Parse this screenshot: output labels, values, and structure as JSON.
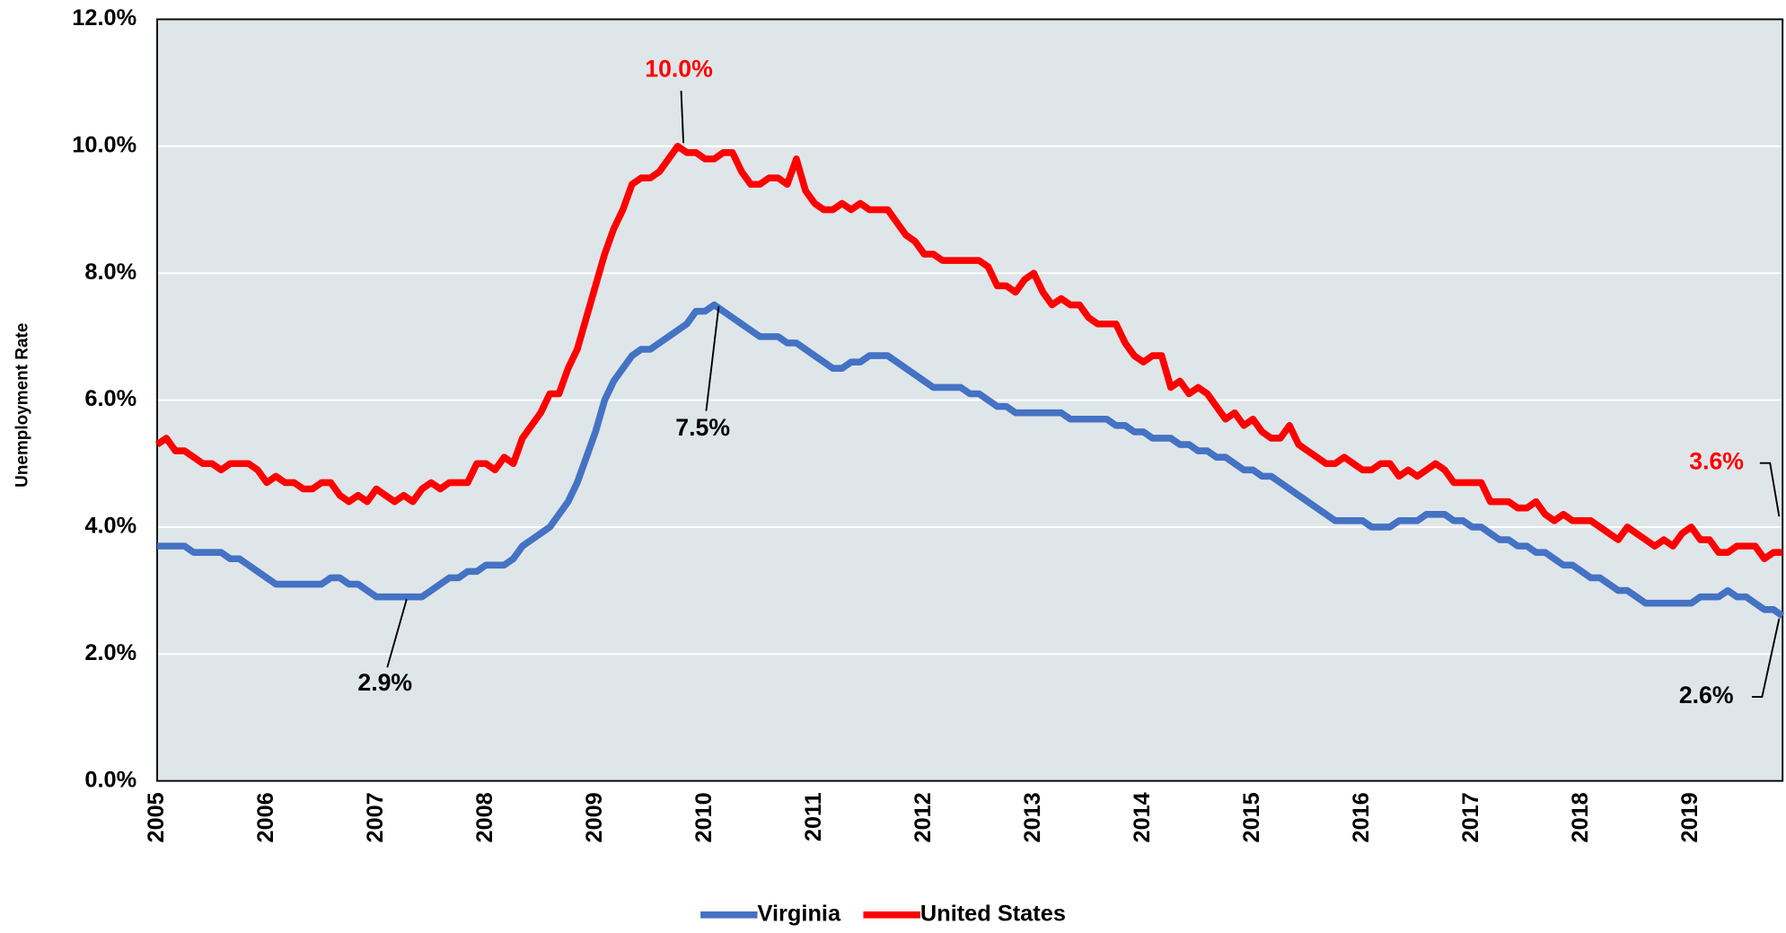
{
  "chart_data": {
    "type": "line",
    "y_label": "Unemployment Rate",
    "categories": [
      "2005",
      null,
      null,
      null,
      null,
      null,
      null,
      null,
      null,
      null,
      null,
      null,
      "2006",
      null,
      null,
      null,
      null,
      null,
      null,
      null,
      null,
      null,
      null,
      null,
      "2007",
      null,
      null,
      null,
      null,
      null,
      null,
      null,
      null,
      null,
      null,
      null,
      "2008",
      null,
      null,
      null,
      null,
      null,
      null,
      null,
      null,
      null,
      null,
      null,
      "2009",
      null,
      null,
      null,
      null,
      null,
      null,
      null,
      null,
      null,
      null,
      null,
      "2010",
      null,
      null,
      null,
      null,
      null,
      null,
      null,
      null,
      null,
      null,
      null,
      "2011",
      null,
      null,
      null,
      null,
      null,
      null,
      null,
      null,
      null,
      null,
      null,
      "2012",
      null,
      null,
      null,
      null,
      null,
      null,
      null,
      null,
      null,
      null,
      null,
      "2013",
      null,
      null,
      null,
      null,
      null,
      null,
      null,
      null,
      null,
      null,
      null,
      "2014",
      null,
      null,
      null,
      null,
      null,
      null,
      null,
      null,
      null,
      null,
      null,
      "2015",
      null,
      null,
      null,
      null,
      null,
      null,
      null,
      null,
      null,
      null,
      null,
      "2016",
      null,
      null,
      null,
      null,
      null,
      null,
      null,
      null,
      null,
      null,
      null,
      "2017",
      null,
      null,
      null,
      null,
      null,
      null,
      null,
      null,
      null,
      null,
      null,
      "2018",
      null,
      null,
      null,
      null,
      null,
      null,
      null,
      null,
      null,
      null,
      null,
      "2019",
      null,
      null,
      null,
      null,
      null,
      null,
      null,
      null,
      null,
      null
    ],
    "series": [
      {
        "name": "Virginia",
        "color": "#4472c4",
        "values": [
          3.7,
          3.7,
          3.7,
          3.7,
          3.6,
          3.6,
          3.6,
          3.6,
          3.5,
          3.5,
          3.4,
          3.3,
          3.2,
          3.1,
          3.1,
          3.1,
          3.1,
          3.1,
          3.1,
          3.2,
          3.2,
          3.1,
          3.1,
          3.0,
          2.9,
          2.9,
          2.9,
          2.9,
          2.9,
          2.9,
          3.0,
          3.1,
          3.2,
          3.2,
          3.3,
          3.3,
          3.4,
          3.4,
          3.4,
          3.5,
          3.7,
          3.8,
          3.9,
          4.0,
          4.2,
          4.4,
          4.7,
          5.1,
          5.5,
          6.0,
          6.3,
          6.5,
          6.7,
          6.8,
          6.8,
          6.9,
          7.0,
          7.1,
          7.2,
          7.4,
          7.4,
          7.5,
          7.4,
          7.3,
          7.2,
          7.1,
          7.0,
          7.0,
          7.0,
          6.9,
          6.9,
          6.8,
          6.7,
          6.6,
          6.5,
          6.5,
          6.6,
          6.6,
          6.7,
          6.7,
          6.7,
          6.6,
          6.5,
          6.4,
          6.3,
          6.2,
          6.2,
          6.2,
          6.2,
          6.1,
          6.1,
          6.0,
          5.9,
          5.9,
          5.8,
          5.8,
          5.8,
          5.8,
          5.8,
          5.8,
          5.7,
          5.7,
          5.7,
          5.7,
          5.7,
          5.6,
          5.6,
          5.5,
          5.5,
          5.4,
          5.4,
          5.4,
          5.3,
          5.3,
          5.2,
          5.2,
          5.1,
          5.1,
          5.0,
          4.9,
          4.9,
          4.8,
          4.8,
          4.7,
          4.6,
          4.5,
          4.4,
          4.3,
          4.2,
          4.1,
          4.1,
          4.1,
          4.1,
          4.0,
          4.0,
          4.0,
          4.1,
          4.1,
          4.1,
          4.2,
          4.2,
          4.2,
          4.1,
          4.1,
          4.0,
          4.0,
          3.9,
          3.8,
          3.8,
          3.7,
          3.7,
          3.6,
          3.6,
          3.5,
          3.4,
          3.4,
          3.3,
          3.2,
          3.2,
          3.1,
          3.0,
          3.0,
          2.9,
          2.8,
          2.8,
          2.8,
          2.8,
          2.8,
          2.8,
          2.9,
          2.9,
          2.9,
          3.0,
          2.9,
          2.9,
          2.8,
          2.7,
          2.7,
          2.6
        ]
      },
      {
        "name": "United States",
        "color": "#ff0000",
        "values": [
          5.3,
          5.4,
          5.2,
          5.2,
          5.1,
          5.0,
          5.0,
          4.9,
          5.0,
          5.0,
          5.0,
          4.9,
          4.7,
          4.8,
          4.7,
          4.7,
          4.6,
          4.6,
          4.7,
          4.7,
          4.5,
          4.4,
          4.5,
          4.4,
          4.6,
          4.5,
          4.4,
          4.5,
          4.4,
          4.6,
          4.7,
          4.6,
          4.7,
          4.7,
          4.7,
          5.0,
          5.0,
          4.9,
          5.1,
          5.0,
          5.4,
          5.6,
          5.8,
          6.1,
          6.1,
          6.5,
          6.8,
          7.3,
          7.8,
          8.3,
          8.7,
          9.0,
          9.4,
          9.5,
          9.5,
          9.6,
          9.8,
          10.0,
          9.9,
          9.9,
          9.8,
          9.8,
          9.9,
          9.9,
          9.6,
          9.4,
          9.4,
          9.5,
          9.5,
          9.4,
          9.8,
          9.3,
          9.1,
          9.0,
          9.0,
          9.1,
          9.0,
          9.1,
          9.0,
          9.0,
          9.0,
          8.8,
          8.6,
          8.5,
          8.3,
          8.3,
          8.2,
          8.2,
          8.2,
          8.2,
          8.2,
          8.1,
          7.8,
          7.8,
          7.7,
          7.9,
          8.0,
          7.7,
          7.5,
          7.6,
          7.5,
          7.5,
          7.3,
          7.2,
          7.2,
          7.2,
          6.9,
          6.7,
          6.6,
          6.7,
          6.7,
          6.2,
          6.3,
          6.1,
          6.2,
          6.1,
          5.9,
          5.7,
          5.8,
          5.6,
          5.7,
          5.5,
          5.4,
          5.4,
          5.6,
          5.3,
          5.2,
          5.1,
          5.0,
          5.0,
          5.1,
          5.0,
          4.9,
          4.9,
          5.0,
          5.0,
          4.8,
          4.9,
          4.8,
          4.9,
          5.0,
          4.9,
          4.7,
          4.7,
          4.7,
          4.7,
          4.4,
          4.4,
          4.4,
          4.3,
          4.3,
          4.4,
          4.2,
          4.1,
          4.2,
          4.1,
          4.1,
          4.1,
          4.0,
          3.9,
          3.8,
          4.0,
          3.9,
          3.8,
          3.7,
          3.8,
          3.7,
          3.9,
          4.0,
          3.8,
          3.8,
          3.6,
          3.6,
          3.7,
          3.7,
          3.7,
          3.5,
          3.6,
          3.6
        ]
      }
    ],
    "ylim": [
      0,
      12
    ],
    "yticks": [
      {
        "value": 0,
        "label": "0.0%"
      },
      {
        "value": 2,
        "label": "2.0%"
      },
      {
        "value": 4,
        "label": "4.0%"
      },
      {
        "value": 6,
        "label": "6.0%"
      },
      {
        "value": 8,
        "label": "8.0%"
      },
      {
        "value": 10,
        "label": "10.0%"
      },
      {
        "value": 12,
        "label": "12.0%"
      }
    ],
    "grid": true,
    "legend": "bottom",
    "annotations": [
      "10.0%",
      "7.5%",
      "2.9%",
      "3.6%",
      "2.6%"
    ]
  }
}
